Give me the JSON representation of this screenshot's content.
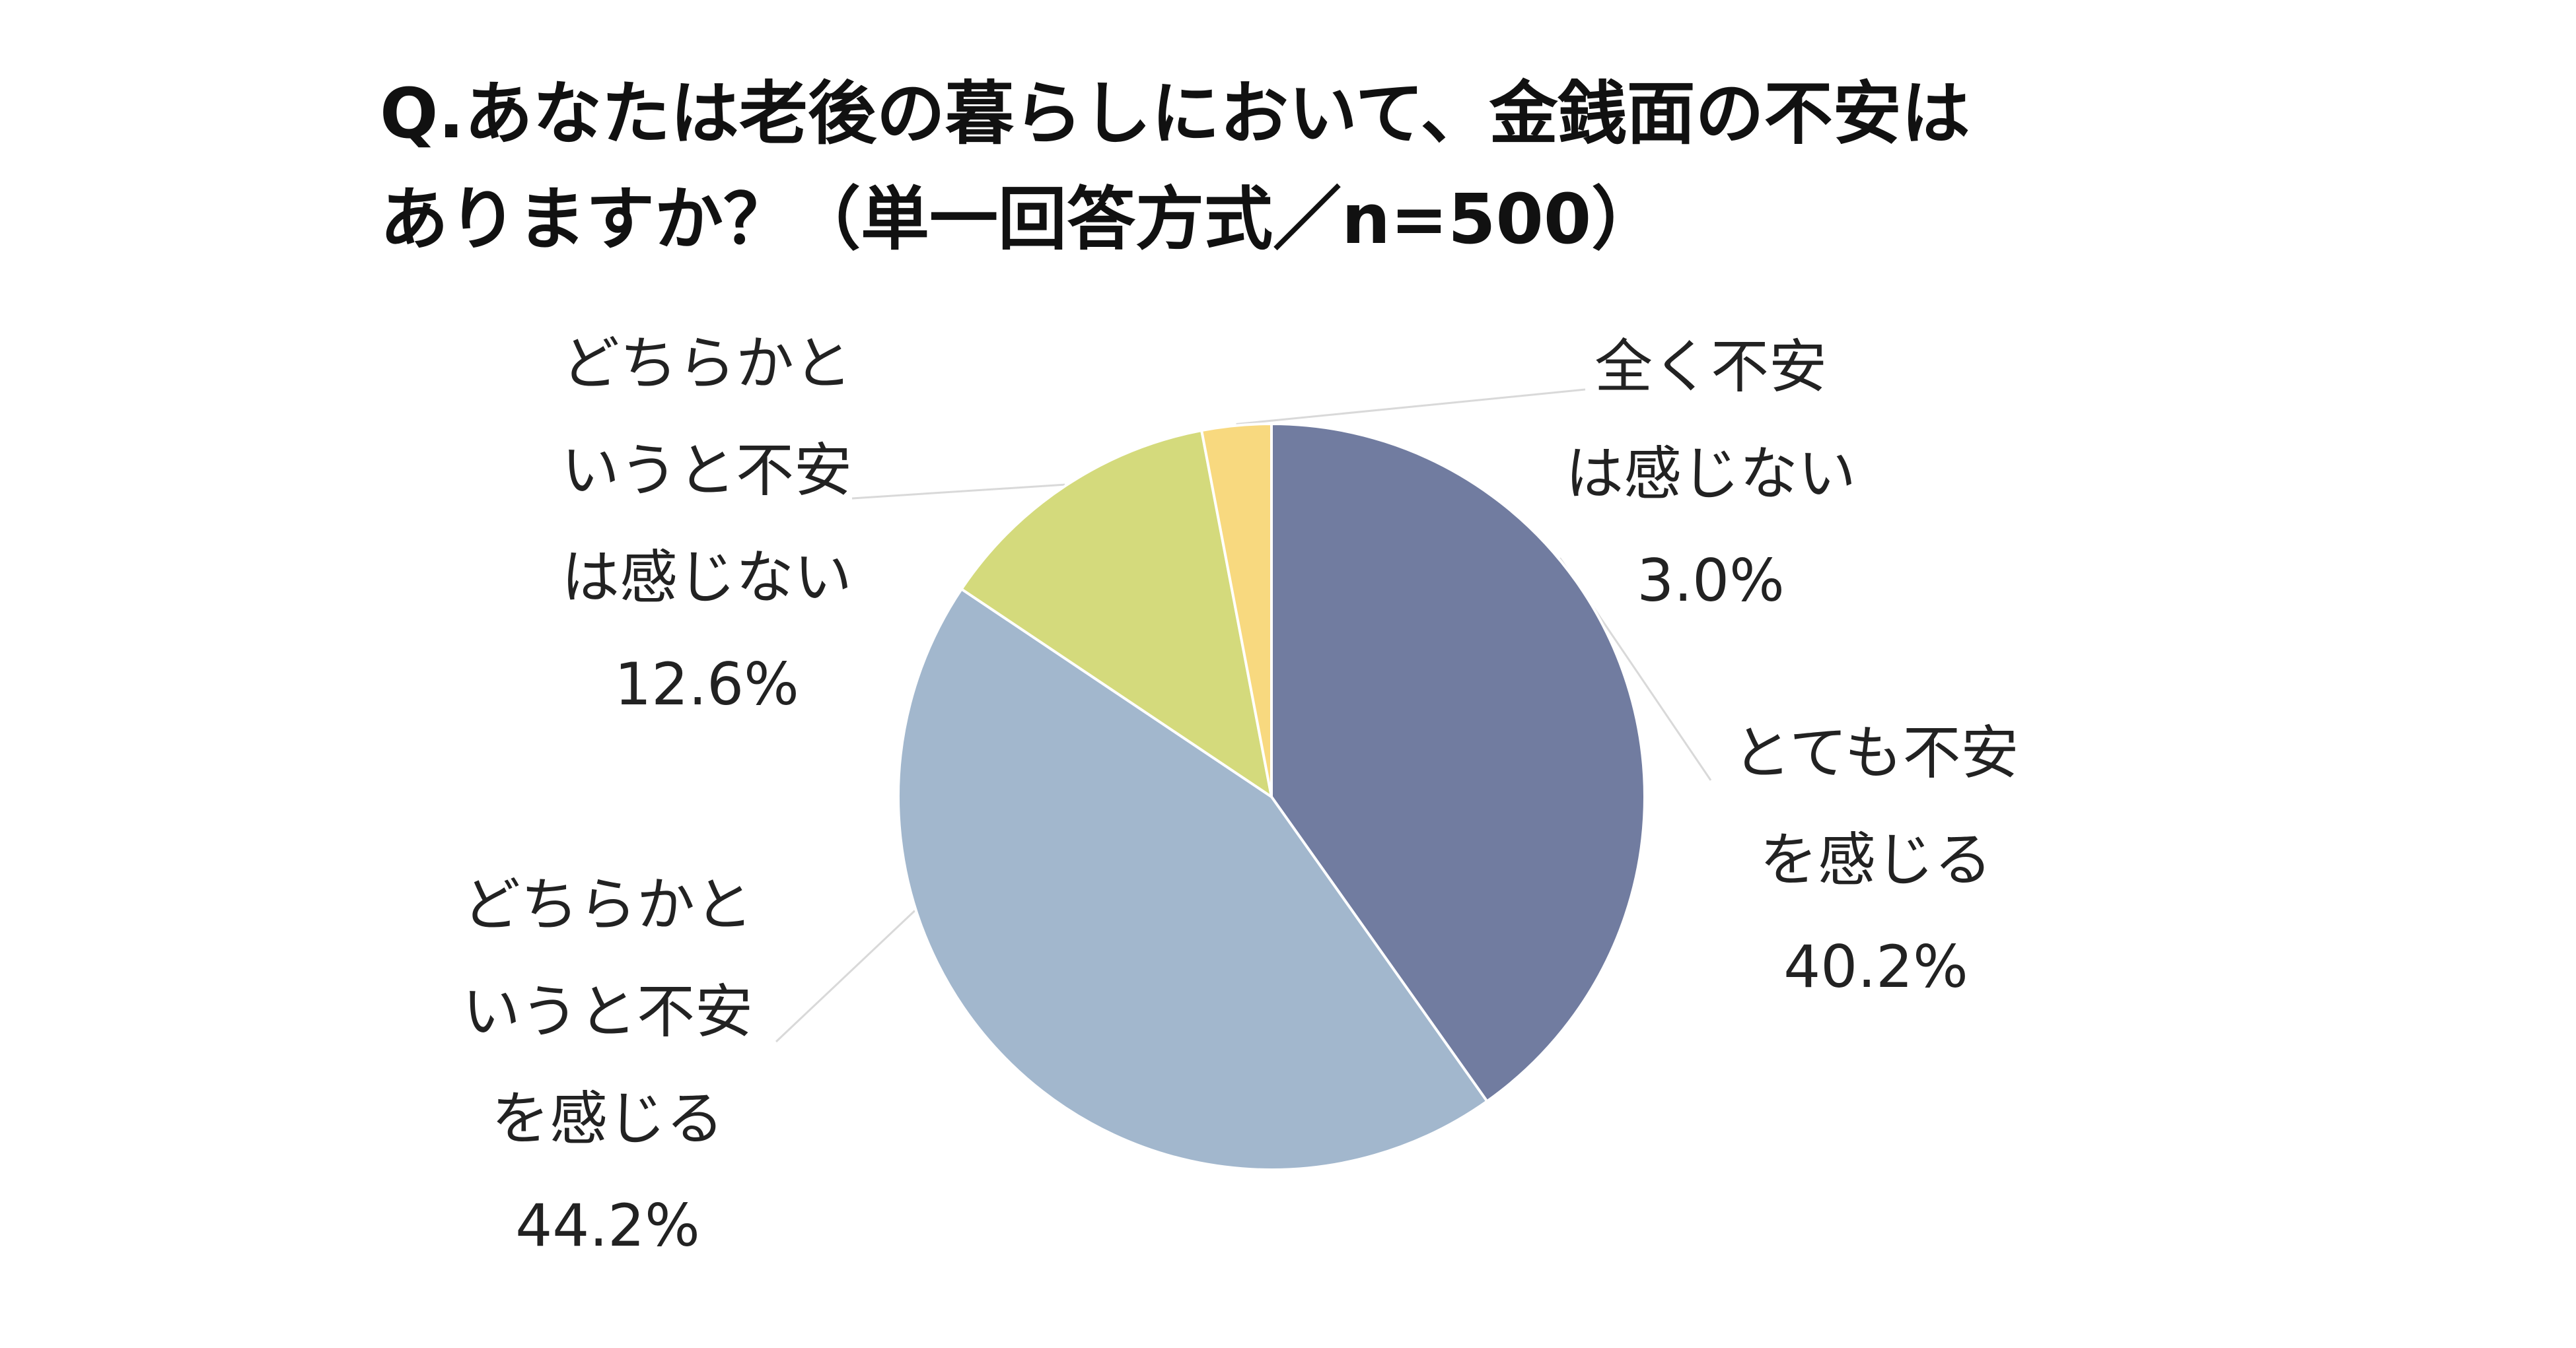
{
  "chart_data": {
    "type": "pie",
    "title": "Q.あなたは老後の暮らしにおいて、金銭面の不安はありますか？（単一回答方式／n=500）",
    "title_lines": [
      "Q.あなたは老後の暮らしにおいて、金銭面の不安は",
      "ありますか？（単一回答方式／n=500）"
    ],
    "start_angle": "12 o'clock, clockwise",
    "slices": [
      {
        "label": "とても不安を感じる",
        "label_lines": [
          "とても不安",
          "を感じる"
        ],
        "value": 40.2,
        "value_label": "40.2%",
        "color": "#717ca0"
      },
      {
        "label": "どちらかというと不安を感じる",
        "label_lines": [
          "どちらかと",
          "いうと不安",
          "を感じる"
        ],
        "value": 44.2,
        "value_label": "44.2%",
        "color": "#a2b7cd"
      },
      {
        "label": "どちらかというと不安は感じない",
        "label_lines": [
          "どちらかと",
          "いうと不安",
          "は感じない"
        ],
        "value": 12.6,
        "value_label": "12.6%",
        "color": "#d4da7c"
      },
      {
        "label": "全く不安は感じない",
        "label_lines": [
          "全く不安",
          "は感じない"
        ],
        "value": 3.0,
        "value_label": "3.0%",
        "color": "#f8d97f"
      }
    ]
  }
}
